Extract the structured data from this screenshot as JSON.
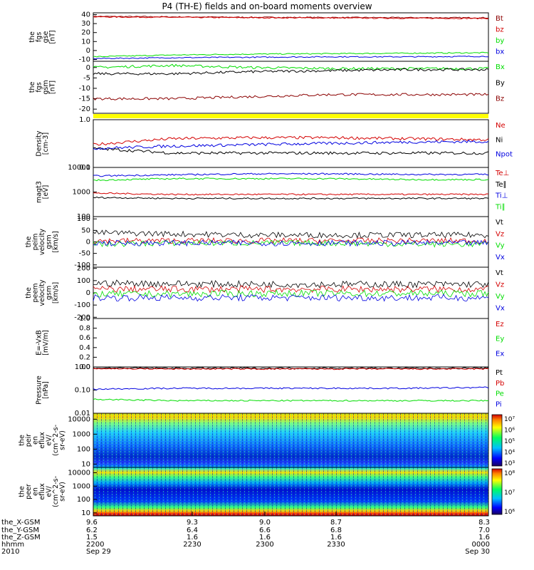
{
  "title": "P4 (TH-E) fields and on-board moments overview",
  "colors": {
    "black": "#000000",
    "red": "#d40000",
    "green": "#00dd00",
    "blue": "#0000e0",
    "darkred": "#8b0000",
    "yellow": "#ffff00"
  },
  "chart_data": [
    {
      "type": "line",
      "panel": "fgs_gse",
      "ylabel": [
        "the",
        "fgs",
        "gse",
        "[nT]"
      ],
      "yticks": [
        "40",
        "30",
        "20",
        "10",
        "0",
        "-10"
      ],
      "ylim": [
        -12,
        42
      ],
      "series": [
        {
          "name": "Bt",
          "color": "#8b0000",
          "levels": [
            38,
            37.5,
            37,
            36.8,
            36.6,
            36.5
          ]
        },
        {
          "name": "bz",
          "color": "#d40000",
          "levels": [
            37.5,
            37,
            36.6,
            36.3,
            36,
            35.8
          ]
        },
        {
          "name": "by",
          "color": "#00dd00",
          "levels": [
            -7,
            -5,
            -4,
            -3.5,
            -3,
            -2.5
          ]
        },
        {
          "name": "bx",
          "color": "#0000e0",
          "levels": [
            -9,
            -8,
            -7.5,
            -7,
            -7,
            -6.5
          ]
        }
      ]
    },
    {
      "type": "line",
      "panel": "fgs_gsm",
      "ylabel": [
        "the",
        "fgs",
        "gsm",
        "[nT]"
      ],
      "yticks": [
        "0",
        "-5",
        "-10",
        "-15",
        "-20"
      ],
      "ylim": [
        -22,
        3
      ],
      "series": [
        {
          "name": "Bx",
          "color": "#00dd00",
          "levels": [
            0,
            1,
            0,
            -0.5,
            -0.5,
            -0.5
          ]
        },
        {
          "name": "By",
          "color": "#000000",
          "levels": [
            -3,
            -3,
            -2,
            -1.5,
            -1,
            -1
          ]
        },
        {
          "name": "Bz",
          "color": "#8b0000",
          "levels": [
            -15,
            -15,
            -14,
            -13,
            -13,
            -13
          ]
        }
      ]
    },
    {
      "type": "line",
      "panel": "density",
      "ylabel": [
        "Density",
        "[cm-3]"
      ],
      "yticks": [
        "1.0",
        "0.1"
      ],
      "ylim": [
        0.1,
        1.0
      ],
      "log": true,
      "series": [
        {
          "name": "Ne",
          "color": "#d40000",
          "levels": [
            0.3,
            0.4,
            0.42,
            0.42,
            0.4,
            0.38
          ]
        },
        {
          "name": "Ni",
          "color": "#000000",
          "levels": [
            0.25,
            0.2,
            0.2,
            0.2,
            0.2,
            0.2
          ]
        },
        {
          "name": "Npot",
          "color": "#0000e0",
          "levels": [
            0.25,
            0.28,
            0.3,
            0.32,
            0.34,
            0.35
          ]
        }
      ]
    },
    {
      "type": "line",
      "panel": "temperature",
      "ylabel": [
        "magt3",
        "[eV]"
      ],
      "yticks": [
        "10000",
        "1000",
        "100"
      ],
      "ylim": [
        100,
        10000
      ],
      "log": true,
      "series": [
        {
          "name": "Te⊥",
          "color": "#d40000",
          "levels": [
            900,
            800,
            800,
            800,
            800,
            800
          ]
        },
        {
          "name": "Te∥",
          "color": "#000000",
          "levels": [
            600,
            550,
            550,
            550,
            550,
            550
          ]
        },
        {
          "name": "Ti⊥",
          "color": "#0000e0",
          "levels": [
            4500,
            5000,
            5500,
            5500,
            5200,
            5200
          ]
        },
        {
          "name": "Ti∥",
          "color": "#00dd00",
          "levels": [
            3000,
            3500,
            3500,
            3500,
            3200,
            3200
          ]
        }
      ]
    },
    {
      "type": "line",
      "panel": "peim_velocity",
      "ylabel": [
        "the",
        "peim",
        "velocity",
        "gsm",
        "[km/s]"
      ],
      "yticks": [
        "100",
        "50",
        "0",
        "-50",
        "-100"
      ],
      "ylim": [
        -110,
        110
      ],
      "series": [
        {
          "name": "Vt",
          "color": "#000000",
          "levels": [
            40,
            35,
            30,
            30,
            30,
            30
          ]
        },
        {
          "name": "Vz",
          "color": "#d40000",
          "levels": [
            5,
            5,
            5,
            5,
            5,
            5
          ]
        },
        {
          "name": "Vy",
          "color": "#00dd00",
          "levels": [
            -10,
            -5,
            -5,
            -5,
            -10,
            -10
          ]
        },
        {
          "name": "Vx",
          "color": "#0000e0",
          "levels": [
            -5,
            -5,
            -5,
            -5,
            -5,
            -5
          ]
        }
      ]
    },
    {
      "type": "line",
      "panel": "peem_velocity",
      "ylabel": [
        "the",
        "peem",
        "velocity",
        "gsm",
        "[km/s]"
      ],
      "yticks": [
        "200",
        "100",
        "0",
        "-100",
        "-200"
      ],
      "ylim": [
        -210,
        210
      ],
      "series": [
        {
          "name": "Vt",
          "color": "#000000",
          "levels": [
            80,
            75,
            70,
            70,
            70,
            70
          ]
        },
        {
          "name": "Vz",
          "color": "#d40000",
          "levels": [
            30,
            30,
            30,
            30,
            30,
            30
          ]
        },
        {
          "name": "Vy",
          "color": "#00dd00",
          "levels": [
            -10,
            -10,
            -5,
            -5,
            -5,
            -5
          ]
        },
        {
          "name": "Vx",
          "color": "#0000e0",
          "levels": [
            -40,
            -40,
            -40,
            -40,
            -40,
            -40
          ]
        }
      ]
    },
    {
      "type": "line",
      "panel": "exb",
      "ylabel": [
        "E=-VxB",
        "[mV/m]"
      ],
      "yticks": [
        "1.0",
        "0.8",
        "0.6",
        "0.4",
        "0.2",
        "0.0"
      ],
      "ylim": [
        0,
        1
      ],
      "series": [
        {
          "name": "Ez",
          "color": "#d40000",
          "levels": []
        },
        {
          "name": "Ey",
          "color": "#00dd00",
          "levels": []
        },
        {
          "name": "Ex",
          "color": "#0000e0",
          "levels": []
        }
      ]
    },
    {
      "type": "line",
      "panel": "pressure",
      "ylabel": [
        "Pressure",
        "[nPa]"
      ],
      "yticks": [
        "1.00",
        "0.10",
        "0.01"
      ],
      "ylim": [
        0.01,
        1.0
      ],
      "log": true,
      "series": [
        {
          "name": "Pt",
          "color": "#000000",
          "levels": [
            0.9,
            0.88,
            0.88,
            0.88,
            0.88,
            0.88
          ]
        },
        {
          "name": "Pb",
          "color": "#d40000",
          "levels": [
            0.85,
            0.82,
            0.82,
            0.82,
            0.82,
            0.82
          ]
        },
        {
          "name": "Pe",
          "color": "#00dd00",
          "levels": [
            0.04,
            0.035,
            0.035,
            0.035,
            0.035,
            0.035
          ]
        },
        {
          "name": "Pi",
          "color": "#0000e0",
          "levels": [
            0.11,
            0.12,
            0.12,
            0.12,
            0.12,
            0.13
          ]
        }
      ]
    },
    {
      "type": "heatmap",
      "panel": "peir_spectrogram",
      "ylabel": [
        "the",
        "peir",
        "en",
        "eflux",
        "eV/",
        "(cm^2-s-",
        "sr-eV)"
      ],
      "yticks": [
        "10000",
        "1000",
        "100",
        "10"
      ],
      "ylim": [
        6,
        25000
      ],
      "colorbar_ticks": [
        "10⁷",
        "10⁶",
        "10⁵",
        "10⁴",
        "10³"
      ]
    },
    {
      "type": "heatmap",
      "panel": "peer_spectrogram",
      "ylabel": [
        "the",
        "peer",
        "en",
        "eflux",
        "eV/",
        "(cm^2-s-",
        "sr-eV)"
      ],
      "yticks": [
        "10000",
        "1000",
        "100",
        "10"
      ],
      "ylim": [
        6,
        25000
      ],
      "colorbar_ticks": [
        "10⁸",
        "10⁷",
        "10⁶"
      ]
    }
  ],
  "x_axis": {
    "row_labels": [
      "the_X-GSM",
      "the_Y-GSM",
      "the_Z-GSM",
      "hhmm",
      "2010"
    ],
    "columns": [
      [
        "9.6",
        "6.2",
        "1.5",
        "2200",
        "Sep 29"
      ],
      [
        "9.3",
        "6.4",
        "1.6",
        "2230",
        ""
      ],
      [
        "9.0",
        "6.6",
        "1.6",
        "2300",
        ""
      ],
      [
        "8.7",
        "6.8",
        "1.6",
        "2330",
        ""
      ],
      [
        "8.3",
        "7.0",
        "1.6",
        "0000",
        "Sep 30"
      ]
    ]
  }
}
